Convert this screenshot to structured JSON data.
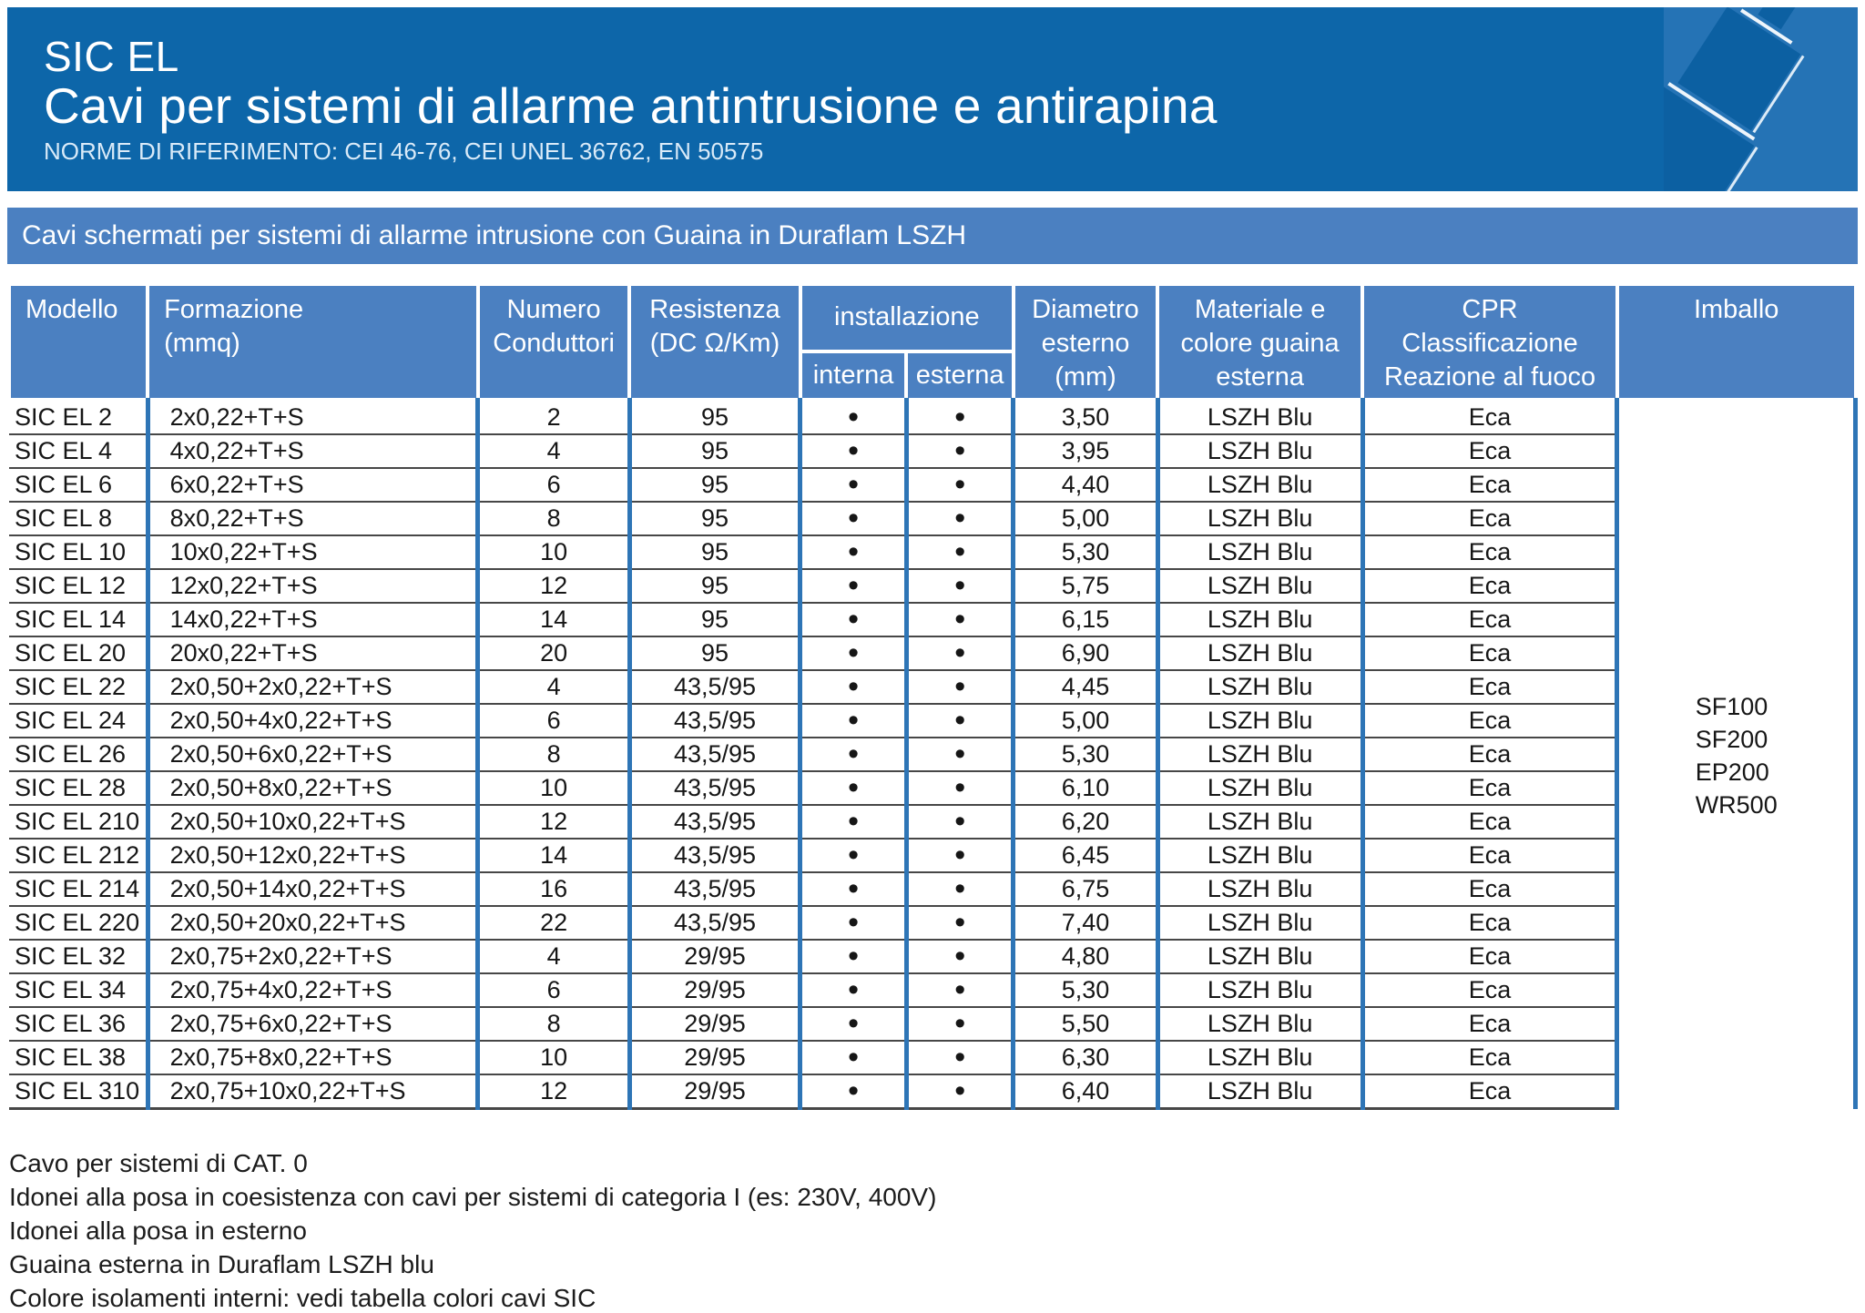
{
  "header": {
    "title": "SIC EL",
    "subtitle": "Cavi per sistemi di allarme antintrusione e antirapina",
    "norms": "NORME DI RIFERIMENTO: CEI 46-76, CEI UNEL 36762, EN 50575",
    "icon": "cable-icon"
  },
  "section_band": {
    "label": "Cavi schermati per sistemi di allarme intrusione con Guaina in Duraflam LSZH"
  },
  "table": {
    "headers": {
      "modello": "Modello",
      "formazione": "Formazione\n(mmq)",
      "numero_conduttori": "Numero\nConduttori",
      "resistenza": "Resistenza\n(DC Ω/Km)",
      "installazione": "installazione",
      "interna": "interna",
      "esterna": "esterna",
      "diametro": "Diametro\nesterno\n(mm)",
      "materiale": "Materiale e\ncolore guaina\nesterna",
      "cpr": "CPR\nClassificazione\nReazione al fuoco",
      "imballo": "Imballo"
    },
    "rows": [
      {
        "modello": "SIC EL 2",
        "formazione": "2x0,22+T+S",
        "conduttori": "2",
        "resistenza": "95",
        "interna": "•",
        "esterna": "•",
        "diametro": "3,50",
        "guaina": "LSZH Blu",
        "cpr": "Eca"
      },
      {
        "modello": "SIC EL 4",
        "formazione": "4x0,22+T+S",
        "conduttori": "4",
        "resistenza": "95",
        "interna": "•",
        "esterna": "•",
        "diametro": "3,95",
        "guaina": "LSZH Blu",
        "cpr": "Eca"
      },
      {
        "modello": "SIC EL 6",
        "formazione": "6x0,22+T+S",
        "conduttori": "6",
        "resistenza": "95",
        "interna": "•",
        "esterna": "•",
        "diametro": "4,40",
        "guaina": "LSZH Blu",
        "cpr": "Eca"
      },
      {
        "modello": "SIC EL 8",
        "formazione": "8x0,22+T+S",
        "conduttori": "8",
        "resistenza": "95",
        "interna": "•",
        "esterna": "•",
        "diametro": "5,00",
        "guaina": "LSZH Blu",
        "cpr": "Eca"
      },
      {
        "modello": "SIC EL 10",
        "formazione": "10x0,22+T+S",
        "conduttori": "10",
        "resistenza": "95",
        "interna": "•",
        "esterna": "•",
        "diametro": "5,30",
        "guaina": "LSZH Blu",
        "cpr": "Eca"
      },
      {
        "modello": "SIC EL 12",
        "formazione": "12x0,22+T+S",
        "conduttori": "12",
        "resistenza": "95",
        "interna": "•",
        "esterna": "•",
        "diametro": "5,75",
        "guaina": "LSZH Blu",
        "cpr": "Eca"
      },
      {
        "modello": "SIC EL 14",
        "formazione": "14x0,22+T+S",
        "conduttori": "14",
        "resistenza": "95",
        "interna": "•",
        "esterna": "•",
        "diametro": "6,15",
        "guaina": "LSZH Blu",
        "cpr": "Eca"
      },
      {
        "modello": "SIC EL 20",
        "formazione": "20x0,22+T+S",
        "conduttori": "20",
        "resistenza": "95",
        "interna": "•",
        "esterna": "•",
        "diametro": "6,90",
        "guaina": "LSZH Blu",
        "cpr": "Eca"
      },
      {
        "modello": "SIC EL 22",
        "formazione": "2x0,50+2x0,22+T+S",
        "conduttori": "4",
        "resistenza": "43,5/95",
        "interna": "•",
        "esterna": "•",
        "diametro": "4,45",
        "guaina": "LSZH Blu",
        "cpr": "Eca"
      },
      {
        "modello": "SIC EL 24",
        "formazione": "2x0,50+4x0,22+T+S",
        "conduttori": "6",
        "resistenza": "43,5/95",
        "interna": "•",
        "esterna": "•",
        "diametro": "5,00",
        "guaina": "LSZH Blu",
        "cpr": "Eca"
      },
      {
        "modello": "SIC EL 26",
        "formazione": "2x0,50+6x0,22+T+S",
        "conduttori": "8",
        "resistenza": "43,5/95",
        "interna": "•",
        "esterna": "•",
        "diametro": "5,30",
        "guaina": "LSZH Blu",
        "cpr": "Eca"
      },
      {
        "modello": "SIC EL 28",
        "formazione": "2x0,50+8x0,22+T+S",
        "conduttori": "10",
        "resistenza": "43,5/95",
        "interna": "•",
        "esterna": "•",
        "diametro": "6,10",
        "guaina": "LSZH Blu",
        "cpr": "Eca"
      },
      {
        "modello": "SIC EL 210",
        "formazione": "2x0,50+10x0,22+T+S",
        "conduttori": "12",
        "resistenza": "43,5/95",
        "interna": "•",
        "esterna": "•",
        "diametro": "6,20",
        "guaina": "LSZH Blu",
        "cpr": "Eca"
      },
      {
        "modello": "SIC EL 212",
        "formazione": "2x0,50+12x0,22+T+S",
        "conduttori": "14",
        "resistenza": "43,5/95",
        "interna": "•",
        "esterna": "•",
        "diametro": "6,45",
        "guaina": "LSZH Blu",
        "cpr": "Eca"
      },
      {
        "modello": "SIC EL 214",
        "formazione": "2x0,50+14x0,22+T+S",
        "conduttori": "16",
        "resistenza": "43,5/95",
        "interna": "•",
        "esterna": "•",
        "diametro": "6,75",
        "guaina": "LSZH Blu",
        "cpr": "Eca"
      },
      {
        "modello": "SIC EL 220",
        "formazione": "2x0,50+20x0,22+T+S",
        "conduttori": "22",
        "resistenza": "43,5/95",
        "interna": "•",
        "esterna": "•",
        "diametro": "7,40",
        "guaina": "LSZH Blu",
        "cpr": "Eca"
      },
      {
        "modello": "SIC EL 32",
        "formazione": "2x0,75+2x0,22+T+S",
        "conduttori": "4",
        "resistenza": "29/95",
        "interna": "•",
        "esterna": "•",
        "diametro": "4,80",
        "guaina": "LSZH Blu",
        "cpr": "Eca"
      },
      {
        "modello": "SIC EL 34",
        "formazione": "2x0,75+4x0,22+T+S",
        "conduttori": "6",
        "resistenza": "29/95",
        "interna": "•",
        "esterna": "•",
        "diametro": "5,30",
        "guaina": "LSZH Blu",
        "cpr": "Eca"
      },
      {
        "modello": "SIC EL 36",
        "formazione": "2x0,75+6x0,22+T+S",
        "conduttori": "8",
        "resistenza": "29/95",
        "interna": "•",
        "esterna": "•",
        "diametro": "5,50",
        "guaina": "LSZH Blu",
        "cpr": "Eca"
      },
      {
        "modello": "SIC EL 38",
        "formazione": "2x0,75+8x0,22+T+S",
        "conduttori": "10",
        "resistenza": "29/95",
        "interna": "•",
        "esterna": "•",
        "diametro": "6,30",
        "guaina": "LSZH Blu",
        "cpr": "Eca"
      },
      {
        "modello": "SIC EL 310",
        "formazione": "2x0,75+10x0,22+T+S",
        "conduttori": "12",
        "resistenza": "29/95",
        "interna": "•",
        "esterna": "•",
        "diametro": "6,40",
        "guaina": "LSZH Blu",
        "cpr": "Eca"
      }
    ],
    "imballo_codes": [
      "SF100",
      "SF200",
      "EP200",
      "WR500"
    ]
  },
  "notes": [
    "Cavo per sistemi di CAT. 0",
    "Idonei alla posa in coesistenza con cavi per sistemi di categoria I (es: 230V, 400V)",
    "Idonei alla posa in esterno",
    "Guaina esterna in Duraflam LSZH blu",
    "Colore isolamenti interni: vedi tabella colori cavi SIC"
  ],
  "colors": {
    "header_blue": "#0d66a9",
    "band_blue": "#4b80c1",
    "line_blue": "#2e75b6",
    "row_line": "#474747",
    "icon_box": "#2573b5",
    "cable": "#0c60a2"
  }
}
